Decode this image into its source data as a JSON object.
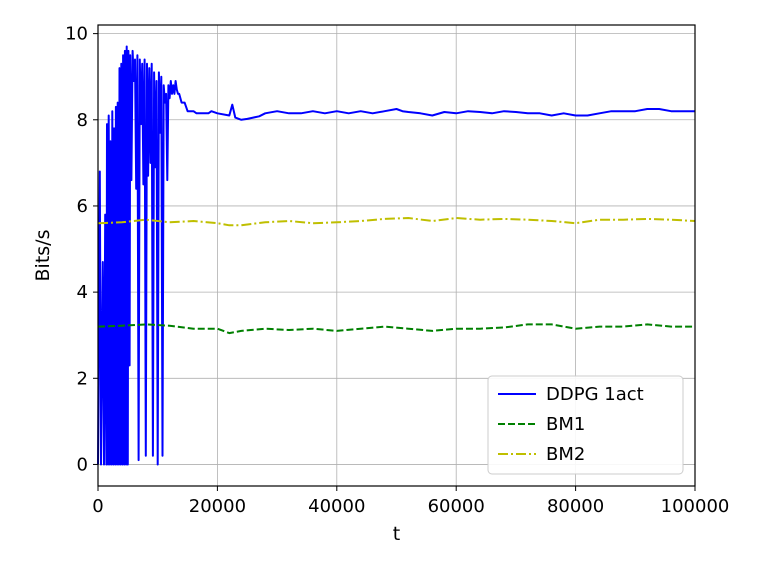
{
  "chart_data": {
    "type": "line",
    "title": "",
    "xlabel": "t",
    "ylabel": "Bits/s",
    "xlim": [
      0,
      100000
    ],
    "ylim": [
      -0.5,
      10.2
    ],
    "xticks": [
      0,
      20000,
      40000,
      60000,
      80000,
      100000
    ],
    "yticks": [
      0,
      2,
      4,
      6,
      8,
      10
    ],
    "grid": true,
    "legend_position": "lower right",
    "series": [
      {
        "name": "DDPG 1act",
        "color": "#0000ff",
        "style": "solid",
        "x": [
          0,
          300,
          500,
          800,
          1000,
          1200,
          1400,
          1500,
          1700,
          1800,
          2000,
          2100,
          2300,
          2400,
          2600,
          2700,
          2900,
          3000,
          3200,
          3300,
          3500,
          3600,
          3800,
          3900,
          4100,
          4200,
          4400,
          4500,
          4700,
          4800,
          5000,
          5100,
          5300,
          5400,
          5600,
          5800,
          6000,
          6200,
          6400,
          6600,
          6800,
          7000,
          7200,
          7400,
          7600,
          7800,
          8000,
          8200,
          8400,
          8600,
          8800,
          9000,
          9200,
          9400,
          9600,
          9800,
          10000,
          10200,
          10400,
          10600,
          10800,
          11000,
          11200,
          11400,
          11600,
          11800,
          12000,
          12200,
          12400,
          12600,
          12800,
          13000,
          13200,
          13400,
          13600,
          14000,
          14500,
          15000,
          16000,
          16500,
          18000,
          18500,
          19000,
          20000,
          22000,
          22500,
          23000,
          24000,
          25000,
          26000,
          27000,
          28000,
          30000,
          32000,
          34000,
          36000,
          38000,
          40000,
          42000,
          44000,
          46000,
          48000,
          50000,
          51000,
          52000,
          54000,
          56000,
          58000,
          60000,
          62000,
          64000,
          66000,
          68000,
          70000,
          72000,
          74000,
          76000,
          78000,
          80000,
          82000,
          84000,
          86000,
          88000,
          90000,
          92000,
          94000,
          96000,
          98000,
          100000
        ],
        "y": [
          0,
          6.8,
          0,
          4.7,
          0,
          5.8,
          0,
          7.9,
          0,
          8.1,
          0,
          7.5,
          0,
          8.2,
          0,
          7.8,
          0,
          8.3,
          0,
          8.4,
          0,
          9.2,
          0,
          9.3,
          0,
          9.5,
          0,
          9.6,
          0,
          9.7,
          0,
          9.6,
          2.3,
          9.5,
          6.6,
          9.6,
          8.9,
          9.4,
          6.4,
          9.5,
          0.1,
          9.4,
          7.9,
          9.3,
          6.5,
          9.4,
          0.2,
          9.3,
          6.7,
          9.2,
          7.0,
          9.3,
          0.2,
          9.1,
          6.9,
          8.9,
          0,
          9.1,
          7.7,
          9.0,
          0.2,
          8.8,
          8.4,
          8.6,
          6.6,
          8.8,
          8.5,
          8.9,
          8.6,
          8.8,
          8.6,
          8.9,
          8.7,
          8.6,
          8.6,
          8.4,
          8.4,
          8.2,
          8.2,
          8.15,
          8.15,
          8.15,
          8.2,
          8.15,
          8.1,
          8.35,
          8.05,
          8.0,
          8.02,
          8.05,
          8.08,
          8.15,
          8.2,
          8.15,
          8.15,
          8.2,
          8.15,
          8.2,
          8.15,
          8.2,
          8.15,
          8.2,
          8.25,
          8.2,
          8.18,
          8.15,
          8.1,
          8.18,
          8.15,
          8.2,
          8.18,
          8.15,
          8.2,
          8.18,
          8.15,
          8.15,
          8.1,
          8.15,
          8.1,
          8.1,
          8.15,
          8.2,
          8.2,
          8.2,
          8.25,
          8.25,
          8.2,
          8.2,
          8.2
        ]
      },
      {
        "name": "BM1",
        "color": "#008000",
        "style": "dashed",
        "x": [
          0,
          4000,
          8000,
          12000,
          16000,
          20000,
          22000,
          24000,
          28000,
          32000,
          36000,
          40000,
          44000,
          48000,
          52000,
          56000,
          60000,
          64000,
          68000,
          72000,
          76000,
          80000,
          84000,
          88000,
          92000,
          96000,
          100000
        ],
        "y": [
          3.2,
          3.22,
          3.25,
          3.22,
          3.15,
          3.15,
          3.05,
          3.1,
          3.15,
          3.12,
          3.15,
          3.1,
          3.15,
          3.2,
          3.15,
          3.1,
          3.15,
          3.15,
          3.18,
          3.25,
          3.25,
          3.15,
          3.2,
          3.2,
          3.25,
          3.2,
          3.2
        ]
      },
      {
        "name": "BM2",
        "color": "#bfbf00",
        "style": "dashdot",
        "x": [
          0,
          4000,
          8000,
          12000,
          16000,
          20000,
          22000,
          24000,
          28000,
          32000,
          36000,
          40000,
          44000,
          48000,
          52000,
          56000,
          60000,
          64000,
          68000,
          72000,
          76000,
          80000,
          84000,
          88000,
          92000,
          96000,
          100000
        ],
        "y": [
          5.6,
          5.62,
          5.68,
          5.62,
          5.65,
          5.6,
          5.55,
          5.55,
          5.62,
          5.65,
          5.6,
          5.62,
          5.65,
          5.7,
          5.72,
          5.65,
          5.72,
          5.68,
          5.7,
          5.68,
          5.65,
          5.6,
          5.68,
          5.68,
          5.7,
          5.68,
          5.65
        ]
      }
    ]
  }
}
